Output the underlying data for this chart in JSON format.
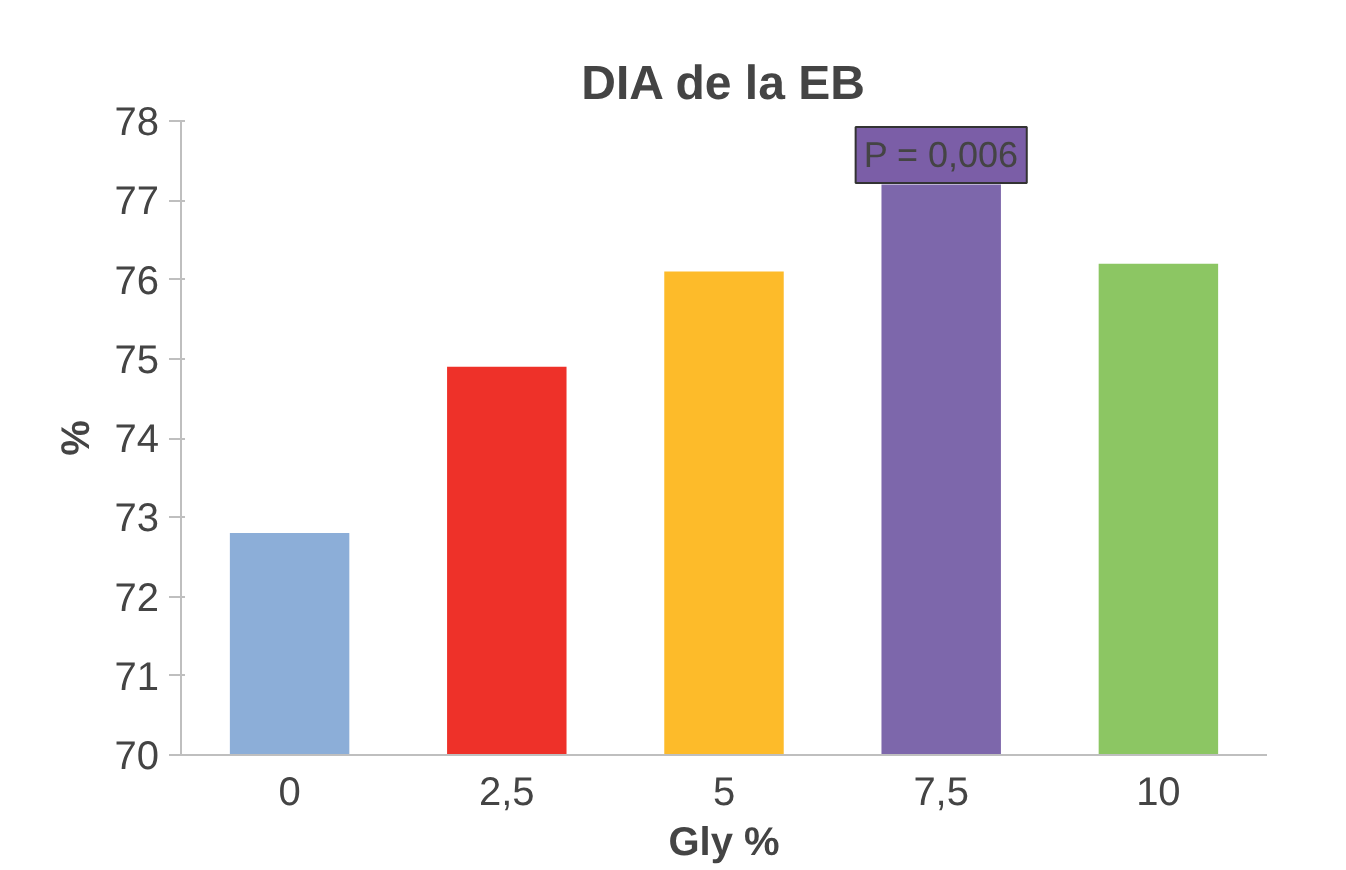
{
  "chart_data": {
    "type": "bar",
    "title": "DIA de la EB",
    "xlabel": "Gly %",
    "ylabel": "%",
    "categories": [
      "0",
      "2,5",
      "5",
      "7,5",
      "10"
    ],
    "values": [
      72.8,
      74.9,
      76.1,
      77.2,
      76.2
    ],
    "colors": [
      "#8caed8",
      "#ee3129",
      "#fdbb2a",
      "#7d67ab",
      "#8cc663"
    ],
    "ylim": [
      70,
      78
    ],
    "yticks": [
      70,
      71,
      72,
      73,
      74,
      75,
      76,
      77,
      78
    ],
    "grid": false,
    "annotations": [
      "P = 0,006"
    ]
  }
}
